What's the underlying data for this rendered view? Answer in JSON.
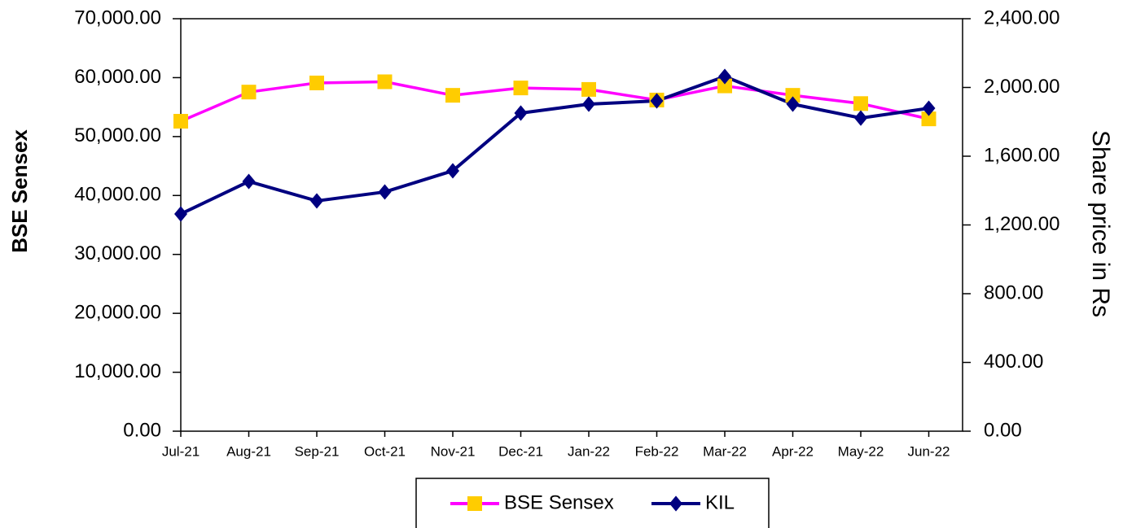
{
  "chart_data": {
    "type": "line",
    "y_label": "BSE Sensex",
    "y2_label": "Share price in Rs",
    "categories": [
      "Jul-21",
      "Aug-21",
      "Sep-21",
      "Oct-21",
      "Nov-21",
      "Dec-21",
      "Jan-22",
      "Feb-22",
      "Mar-22",
      "Apr-22",
      "May-22",
      "Jun-22"
    ],
    "series": [
      {
        "name": "BSE Sensex",
        "color": "#ff00ff",
        "marker_color": "#ffcc00",
        "marker": "square",
        "values": [
          52600,
          57550,
          59100,
          59300,
          57000,
          58250,
          58000,
          56200,
          58600,
          57000,
          55600,
          53000
        ]
      },
      {
        "name": "KIL",
        "color": "#000080",
        "marker_color": "#000080",
        "marker": "diamond",
        "axis": "y2",
        "values": [
          1264,
          1453,
          1340,
          1392,
          1515,
          1851,
          1903,
          1922,
          2064,
          1903,
          1822,
          1879
        ]
      }
    ],
    "ylim": [
      0,
      70000
    ],
    "yticks": [
      {
        "value": 0,
        "label": "0.00"
      },
      {
        "value": 10000,
        "label": "10,000.00"
      },
      {
        "value": 20000,
        "label": "20,000.00"
      },
      {
        "value": 30000,
        "label": "30,000.00"
      },
      {
        "value": 40000,
        "label": "40,000.00"
      },
      {
        "value": 50000,
        "label": "50,000.00"
      },
      {
        "value": 60000,
        "label": "60,000.00"
      },
      {
        "value": 70000,
        "label": "70,000.00"
      }
    ],
    "y2lim": [
      0,
      2400
    ],
    "y2ticks": [
      {
        "value": 0,
        "label": "0.00"
      },
      {
        "value": 400,
        "label": "400.00"
      },
      {
        "value": 800,
        "label": "800.00"
      },
      {
        "value": 1200,
        "label": "1,200.00"
      },
      {
        "value": 1600,
        "label": "1,600.00"
      },
      {
        "value": 2000,
        "label": "2,000.00"
      },
      {
        "value": 2400,
        "label": "2,400.00"
      }
    ],
    "grid": false,
    "legend": "bottom"
  }
}
